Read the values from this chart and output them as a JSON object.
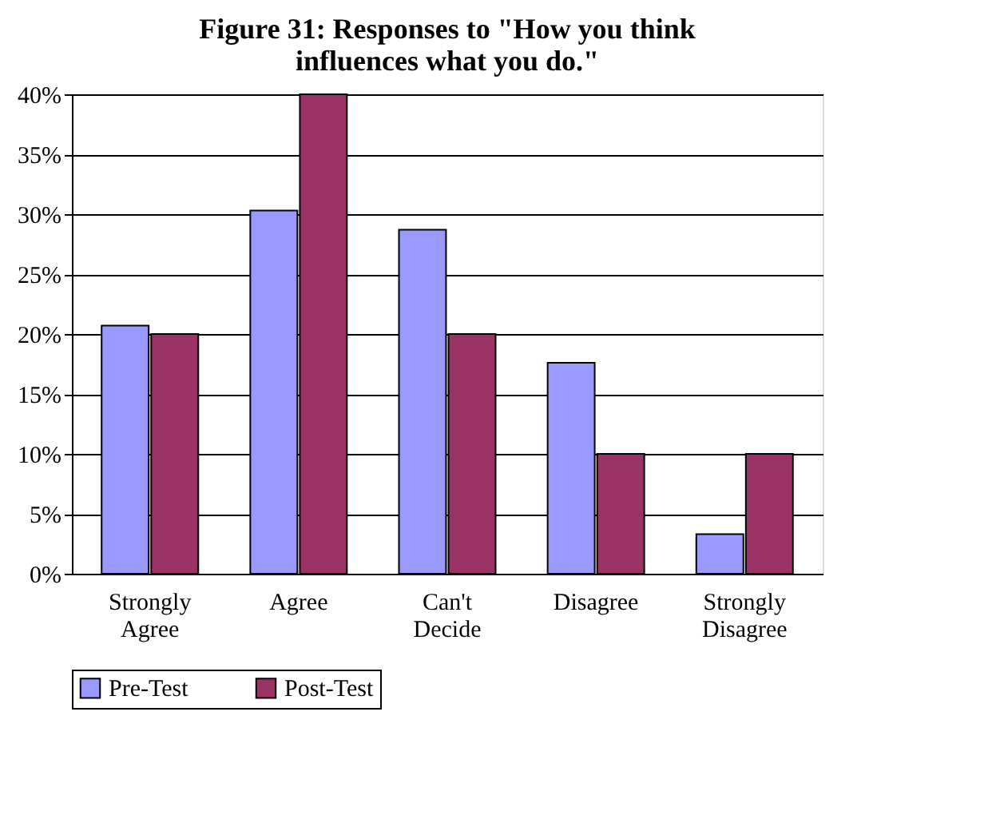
{
  "chart_data": {
    "type": "bar",
    "title": "Figure 31: Responses to \"How you think influences what you do.\"",
    "categories": [
      "Strongly Agree",
      "Agree",
      "Can't Decide",
      "Disagree",
      "Strongly Disagree"
    ],
    "series": [
      {
        "name": "Pre-Test",
        "color": "#9999ff",
        "values": [
          20.7,
          30.3,
          28.7,
          17.6,
          3.3
        ]
      },
      {
        "name": "Post-Test",
        "color": "#993366",
        "values": [
          20,
          40,
          20,
          10,
          10
        ]
      }
    ],
    "ylim": [
      0,
      40
    ],
    "yticks": [
      {
        "value": 0,
        "label": "0%"
      },
      {
        "value": 5,
        "label": "5%"
      },
      {
        "value": 10,
        "label": "10%"
      },
      {
        "value": 15,
        "label": "15%"
      },
      {
        "value": 20,
        "label": "20%"
      },
      {
        "value": 25,
        "label": "25%"
      },
      {
        "value": 30,
        "label": "30%"
      },
      {
        "value": 35,
        "label": "35%"
      },
      {
        "value": 40,
        "label": "40%"
      }
    ],
    "grid": "y",
    "legend": "bottom"
  }
}
